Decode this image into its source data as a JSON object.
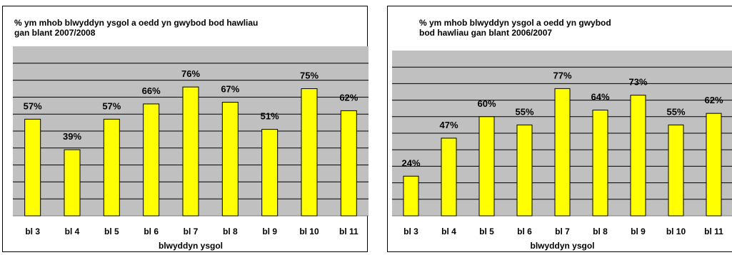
{
  "colors": {
    "plot_bg": "#c0c0c0",
    "bar": "#ffff00",
    "bar_edge": "#000000",
    "grid": "#000000"
  },
  "chart_data": [
    {
      "type": "bar",
      "title": "% ym mhob blwyddyn ysgol a oedd yn gwybod bod hawliau gan blant 2007/2008",
      "title_lines": [
        "% ym mhob blwyddyn ysgol a oedd yn gwybod bod hawliau",
        "gan blant 2007/2008"
      ],
      "xlabel": "blwyddyn ysgol",
      "ylabel": "",
      "categories": [
        "bl 3",
        "bl 4",
        "bl 5",
        "bl 6",
        "bl 7",
        "bl 8",
        "bl 9",
        "bl 10",
        "bl 11"
      ],
      "values": [
        57,
        39,
        57,
        66,
        76,
        67,
        51,
        75,
        62
      ],
      "data_labels": [
        "57%",
        "39%",
        "57%",
        "66%",
        "76%",
        "67%",
        "51%",
        "75%",
        "62%"
      ],
      "ylim": [
        0,
        100
      ],
      "grid": true,
      "legend": "none"
    },
    {
      "type": "bar",
      "title": "% ym mhob blwyddyn ysgol a oedd yn gwybod bod hawliau gan blant 2006/2007",
      "title_lines": [
        "% ym mhob blwyddyn ysgol a oedd yn gwybod",
        "bod hawliau gan blant 2006/2007"
      ],
      "xlabel": "blwyddyn ysgol",
      "ylabel": "",
      "categories": [
        "bl 3",
        "bl 4",
        "bl 5",
        "bl 6",
        "bl 7",
        "bl 8",
        "bl 9",
        "bl 10",
        "bl 11"
      ],
      "values": [
        24,
        47,
        60,
        55,
        77,
        64,
        73,
        55,
        62
      ],
      "data_labels": [
        "24%",
        "47%",
        "60%",
        "55%",
        "77%",
        "64%",
        "73%",
        "55%",
        "62%"
      ],
      "ylim": [
        0,
        100
      ],
      "grid": true,
      "legend": "none"
    }
  ]
}
